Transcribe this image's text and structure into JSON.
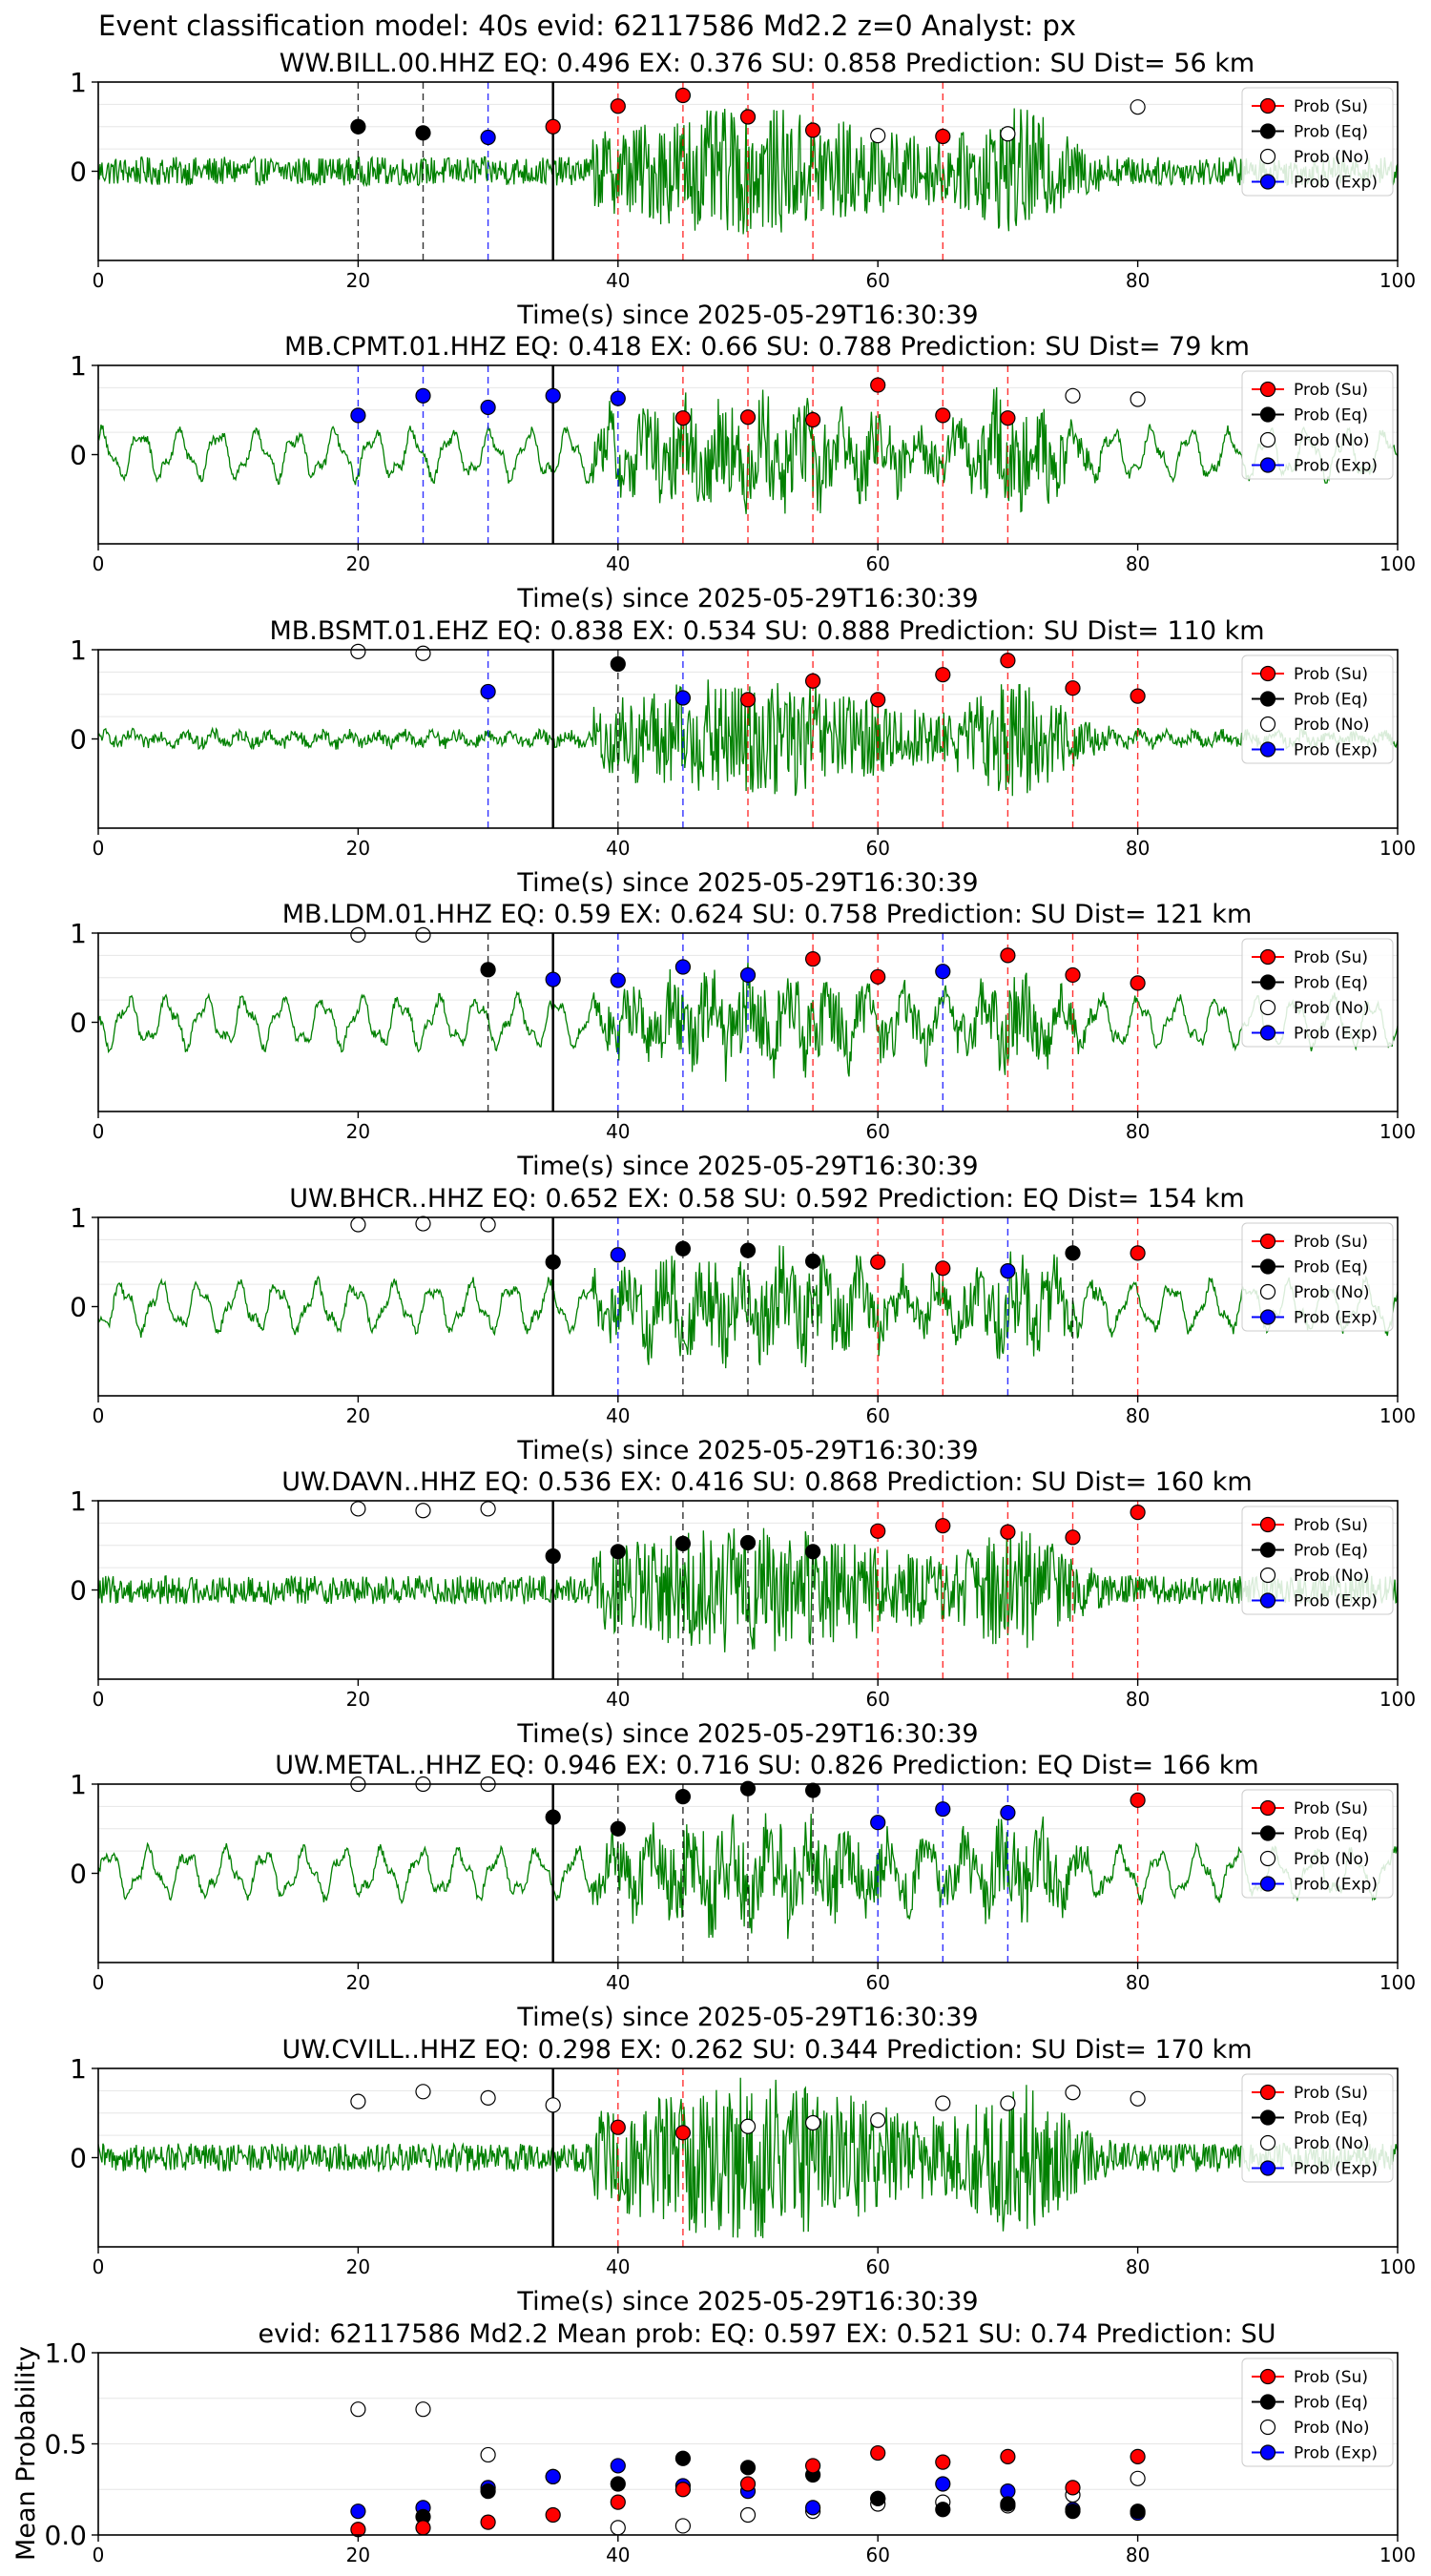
{
  "suptitle": "Event classification model: 40s evid: 62117586 Md2.2 z=0 Analyst: px",
  "legend": {
    "su": "Prob (Su)",
    "eq": "Prob (Eq)",
    "no": "Prob (No)",
    "exp": "Prob (Exp)"
  },
  "colors": {
    "su": "#ff0000",
    "eq": "#000000",
    "no": "#ffffff",
    "exp": "#0000ff",
    "trace": "#008000",
    "pick": "#000000",
    "grid": "#e6e6e6"
  },
  "chart_data": [
    {
      "type": "scatter",
      "title": "WW.BILL.00.HHZ   EQ: 0.496  EX: 0.376  SU: 0.858   Prediction: SU    Dist= 56 km",
      "xlabel": "Time(s) since 2025-05-29T16:30:39",
      "ylabel": "",
      "xlim": [
        0,
        100
      ],
      "ylim": [
        -1,
        1
      ],
      "xticks": [
        "0",
        "20",
        "40",
        "60",
        "80",
        "100"
      ],
      "yticks": [
        "0",
        "1"
      ],
      "pick_time": 35,
      "trace_amp": 0.55,
      "trace_style": "noisy",
      "points": {
        "su": [
          [
            35,
            0.5
          ],
          [
            40,
            0.73
          ],
          [
            45,
            0.85
          ],
          [
            50,
            0.61
          ],
          [
            55,
            0.46
          ],
          [
            65,
            0.39
          ]
        ],
        "eq": [
          [
            20,
            0.5
          ],
          [
            25,
            0.43
          ]
        ],
        "exp": [
          [
            30,
            0.38
          ]
        ],
        "no": [
          [
            60,
            0.4
          ],
          [
            70,
            0.42
          ],
          [
            80,
            0.72
          ]
        ]
      },
      "vlines": {
        "su": [
          40,
          45,
          50,
          55,
          65
        ],
        "eq": [
          20,
          25
        ],
        "exp": [
          30
        ]
      }
    },
    {
      "type": "scatter",
      "title": "MB.CPMT.01.HHZ   EQ: 0.418  EX: 0.66  SU: 0.788   Prediction: SU    Dist= 79 km",
      "xlabel": "Time(s) since 2025-05-29T16:30:39",
      "ylabel": "",
      "xlim": [
        0,
        100
      ],
      "ylim": [
        -1,
        1
      ],
      "xticks": [
        "0",
        "20",
        "40",
        "60",
        "80",
        "100"
      ],
      "yticks": [
        "0",
        "1"
      ],
      "pick_time": 35,
      "trace_amp": 0.5,
      "trace_style": "wavy",
      "points": {
        "su": [
          [
            45,
            0.41
          ],
          [
            50,
            0.42
          ],
          [
            55,
            0.39
          ],
          [
            60,
            0.78
          ],
          [
            65,
            0.44
          ],
          [
            70,
            0.41
          ]
        ],
        "eq": [],
        "exp": [
          [
            20,
            0.44
          ],
          [
            25,
            0.66
          ],
          [
            30,
            0.53
          ],
          [
            35,
            0.66
          ],
          [
            40,
            0.63
          ]
        ],
        "no": [
          [
            75,
            0.66
          ],
          [
            80,
            0.62
          ]
        ]
      },
      "vlines": {
        "su": [
          45,
          50,
          55,
          60,
          65,
          70
        ],
        "eq": [],
        "exp": [
          20,
          25,
          30,
          40
        ]
      }
    },
    {
      "type": "scatter",
      "title": "MB.BSMT.01.EHZ   EQ: 0.838  EX: 0.534  SU: 0.888   Prediction: SU    Dist= 110 km",
      "xlabel": "Time(s) since 2025-05-29T16:30:39",
      "ylabel": "",
      "xlim": [
        0,
        100
      ],
      "ylim": [
        -1,
        1
      ],
      "xticks": [
        "0",
        "20",
        "40",
        "60",
        "80",
        "100"
      ],
      "yticks": [
        "0",
        "1"
      ],
      "pick_time": 35,
      "trace_amp": 0.6,
      "trace_style": "quiet",
      "points": {
        "su": [
          [
            50,
            0.44
          ],
          [
            55,
            0.65
          ],
          [
            60,
            0.44
          ],
          [
            65,
            0.72
          ],
          [
            70,
            0.88
          ],
          [
            75,
            0.57
          ],
          [
            80,
            0.48
          ]
        ],
        "eq": [
          [
            40,
            0.84
          ]
        ],
        "exp": [
          [
            30,
            0.53
          ],
          [
            45,
            0.46
          ]
        ],
        "no": [
          [
            20,
            0.98
          ],
          [
            25,
            0.96
          ]
        ]
      },
      "vlines": {
        "su": [
          50,
          55,
          60,
          65,
          70,
          75,
          80
        ],
        "eq": [
          40
        ],
        "exp": [
          30,
          45
        ]
      }
    },
    {
      "type": "scatter",
      "title": "MB.LDM.01.HHZ   EQ: 0.59  EX: 0.624  SU: 0.758   Prediction: SU    Dist= 121 km",
      "xlabel": "Time(s) since 2025-05-29T16:30:39",
      "ylabel": "",
      "xlim": [
        0,
        100
      ],
      "ylim": [
        -1,
        1
      ],
      "xticks": [
        "0",
        "20",
        "40",
        "60",
        "80",
        "100"
      ],
      "yticks": [
        "0",
        "1"
      ],
      "pick_time": 35,
      "trace_amp": 0.4,
      "trace_style": "wavy",
      "points": {
        "su": [
          [
            55,
            0.71
          ],
          [
            60,
            0.51
          ],
          [
            70,
            0.75
          ],
          [
            75,
            0.53
          ],
          [
            80,
            0.44
          ]
        ],
        "eq": [
          [
            30,
            0.59
          ]
        ],
        "exp": [
          [
            35,
            0.48
          ],
          [
            40,
            0.47
          ],
          [
            45,
            0.62
          ],
          [
            50,
            0.53
          ],
          [
            65,
            0.57
          ]
        ],
        "no": [
          [
            20,
            0.98
          ],
          [
            25,
            0.98
          ]
        ]
      },
      "vlines": {
        "su": [
          55,
          60,
          70,
          75,
          80
        ],
        "eq": [
          30
        ],
        "exp": [
          40,
          45,
          50,
          65
        ]
      }
    },
    {
      "type": "scatter",
      "title": "UW.BHCR..HHZ   EQ: 0.652  EX: 0.58  SU: 0.592   Prediction: EQ    Dist= 154 km",
      "xlabel": "Time(s) since 2025-05-29T16:30:39",
      "ylabel": "",
      "xlim": [
        0,
        100
      ],
      "ylim": [
        -1,
        1
      ],
      "xticks": [
        "0",
        "20",
        "40",
        "60",
        "80",
        "100"
      ],
      "yticks": [
        "0",
        "1"
      ],
      "pick_time": 35,
      "trace_amp": 0.45,
      "trace_style": "wavy",
      "points": {
        "su": [
          [
            60,
            0.5
          ],
          [
            65,
            0.43
          ],
          [
            80,
            0.6
          ]
        ],
        "eq": [
          [
            35,
            0.5
          ],
          [
            45,
            0.65
          ],
          [
            50,
            0.63
          ],
          [
            55,
            0.51
          ],
          [
            75,
            0.6
          ]
        ],
        "exp": [
          [
            40,
            0.58
          ],
          [
            70,
            0.4
          ]
        ],
        "no": [
          [
            20,
            0.92
          ],
          [
            25,
            0.93
          ],
          [
            30,
            0.92
          ]
        ]
      },
      "vlines": {
        "su": [
          60,
          65,
          80
        ],
        "eq": [
          45,
          50,
          55,
          75
        ],
        "exp": [
          40,
          70
        ]
      }
    },
    {
      "type": "scatter",
      "title": "UW.DAVN..HHZ   EQ: 0.536  EX: 0.416  SU: 0.868   Prediction: SU    Dist= 160 km",
      "xlabel": "Time(s) since 2025-05-29T16:30:39",
      "ylabel": "",
      "xlim": [
        0,
        100
      ],
      "ylim": [
        -1,
        1
      ],
      "xticks": [
        "0",
        "20",
        "40",
        "60",
        "80",
        "100"
      ],
      "yticks": [
        "0",
        "1"
      ],
      "pick_time": 35,
      "trace_amp": 0.55,
      "trace_style": "noisy",
      "points": {
        "su": [
          [
            60,
            0.66
          ],
          [
            65,
            0.72
          ],
          [
            70,
            0.65
          ],
          [
            75,
            0.59
          ],
          [
            80,
            0.87
          ]
        ],
        "eq": [
          [
            35,
            0.38
          ],
          [
            40,
            0.43
          ],
          [
            45,
            0.52
          ],
          [
            50,
            0.53
          ],
          [
            55,
            0.43
          ]
        ],
        "exp": [],
        "no": [
          [
            20,
            0.91
          ],
          [
            25,
            0.89
          ],
          [
            30,
            0.91
          ]
        ]
      },
      "vlines": {
        "su": [
          60,
          65,
          70,
          75,
          80
        ],
        "eq": [
          40,
          45,
          50,
          55
        ],
        "exp": []
      }
    },
    {
      "type": "scatter",
      "title": "UW.METAL..HHZ   EQ: 0.946  EX: 0.716  SU: 0.826   Prediction: EQ    Dist= 166 km",
      "xlabel": "Time(s) since 2025-05-29T16:30:39",
      "ylabel": "",
      "xlim": [
        0,
        100
      ],
      "ylim": [
        -1,
        1
      ],
      "xticks": [
        "0",
        "20",
        "40",
        "60",
        "80",
        "100"
      ],
      "yticks": [
        "0",
        "1"
      ],
      "pick_time": 35,
      "trace_amp": 0.45,
      "trace_style": "wavy",
      "points": {
        "su": [
          [
            80,
            0.82
          ]
        ],
        "eq": [
          [
            35,
            0.63
          ],
          [
            40,
            0.5
          ],
          [
            45,
            0.86
          ],
          [
            50,
            0.95
          ],
          [
            55,
            0.93
          ]
        ],
        "exp": [
          [
            60,
            0.57
          ],
          [
            65,
            0.72
          ],
          [
            70,
            0.68
          ]
        ],
        "no": [
          [
            20,
            1.0
          ],
          [
            25,
            1.0
          ],
          [
            30,
            1.0
          ]
        ]
      },
      "vlines": {
        "su": [
          80
        ],
        "eq": [
          40,
          45,
          50,
          55
        ],
        "exp": [
          60,
          65,
          70
        ]
      }
    },
    {
      "type": "scatter",
      "title": "UW.CVILL..HHZ   EQ: 0.298  EX: 0.262  SU: 0.344   Prediction: SU    Dist= 170 km",
      "xlabel": "Time(s) since 2025-05-29T16:30:39",
      "ylabel": "",
      "xlim": [
        0,
        100
      ],
      "ylim": [
        -1,
        1
      ],
      "xticks": [
        "0",
        "20",
        "40",
        "60",
        "80",
        "100"
      ],
      "yticks": [
        "0",
        "1"
      ],
      "pick_time": 35,
      "trace_amp": 0.75,
      "trace_style": "noisy",
      "points": {
        "su": [
          [
            40,
            0.34
          ],
          [
            45,
            0.28
          ]
        ],
        "eq": [],
        "exp": [],
        "no": [
          [
            20,
            0.63
          ],
          [
            25,
            0.74
          ],
          [
            30,
            0.67
          ],
          [
            35,
            0.59
          ],
          [
            50,
            0.35
          ],
          [
            55,
            0.39
          ],
          [
            60,
            0.42
          ],
          [
            65,
            0.61
          ],
          [
            70,
            0.61
          ],
          [
            75,
            0.73
          ],
          [
            80,
            0.66
          ]
        ]
      },
      "vlines": {
        "su": [
          40,
          45
        ],
        "eq": [],
        "exp": []
      }
    },
    {
      "type": "scatter",
      "title": "evid: 62117586  Md2.2   Mean prob:   EQ: 0.597  EX: 0.521  SU: 0.74   Prediction: SU",
      "xlabel": "",
      "ylabel": "Mean Probability",
      "xlim": [
        0,
        100
      ],
      "ylim": [
        0,
        1
      ],
      "xticks": [
        "0",
        "20",
        "40",
        "60",
        "80",
        "100"
      ],
      "yticks": [
        "0.0",
        "0.5",
        "1.0"
      ],
      "pick_time": null,
      "trace_amp": 0,
      "trace_style": "none",
      "points": {
        "su": [
          [
            20,
            0.03
          ],
          [
            25,
            0.04
          ],
          [
            30,
            0.07
          ],
          [
            35,
            0.11
          ],
          [
            40,
            0.18
          ],
          [
            45,
            0.25
          ],
          [
            50,
            0.28
          ],
          [
            55,
            0.38
          ],
          [
            60,
            0.45
          ],
          [
            65,
            0.4
          ],
          [
            70,
            0.43
          ],
          [
            75,
            0.26
          ],
          [
            80,
            0.43
          ]
        ],
        "eq": [
          [
            25,
            0.1
          ],
          [
            30,
            0.24
          ],
          [
            40,
            0.28
          ],
          [
            45,
            0.42
          ],
          [
            50,
            0.37
          ],
          [
            55,
            0.33
          ],
          [
            60,
            0.2
          ],
          [
            65,
            0.14
          ],
          [
            70,
            0.17
          ],
          [
            75,
            0.13
          ],
          [
            80,
            0.13
          ]
        ],
        "exp": [
          [
            20,
            0.13
          ],
          [
            25,
            0.15
          ],
          [
            30,
            0.26
          ],
          [
            35,
            0.32
          ],
          [
            40,
            0.38
          ],
          [
            45,
            0.27
          ],
          [
            50,
            0.24
          ],
          [
            55,
            0.15
          ],
          [
            60,
            0.2
          ],
          [
            65,
            0.28
          ],
          [
            70,
            0.24
          ],
          [
            75,
            0.14
          ],
          [
            80,
            0.12
          ]
        ],
        "no": [
          [
            20,
            0.69
          ],
          [
            25,
            0.69
          ],
          [
            30,
            0.44
          ],
          [
            35,
            0.32
          ],
          [
            40,
            0.04
          ],
          [
            45,
            0.05
          ],
          [
            50,
            0.11
          ],
          [
            55,
            0.13
          ],
          [
            60,
            0.17
          ],
          [
            65,
            0.18
          ],
          [
            70,
            0.16
          ],
          [
            75,
            0.22
          ],
          [
            80,
            0.31
          ]
        ]
      },
      "vlines": {
        "su": [],
        "eq": [],
        "exp": []
      }
    }
  ]
}
